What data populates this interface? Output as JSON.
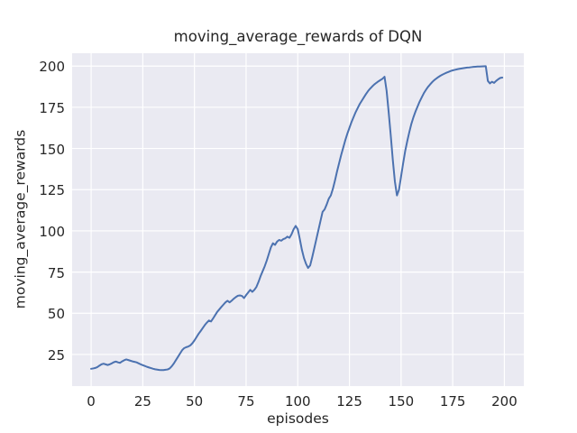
{
  "chart_data": {
    "type": "line",
    "title": "moving_average_rewards of DQN",
    "xlabel": "episodes",
    "ylabel": "moving_average_rewards",
    "legend": "none",
    "grid": true,
    "xlim": [
      -9.2,
      209.4
    ],
    "ylim": [
      5.8,
      207.8
    ],
    "xticks": [
      0,
      25,
      50,
      75,
      100,
      125,
      150,
      175,
      200
    ],
    "yticks": [
      25,
      50,
      75,
      100,
      125,
      150,
      175,
      200
    ],
    "series": [
      {
        "name": "moving_average_rewards",
        "x_start": 0,
        "x_step": 1,
        "values": [
          16.3,
          16.5,
          16.8,
          17.3,
          18.2,
          19.0,
          19.4,
          19.0,
          18.6,
          19.0,
          19.6,
          20.3,
          20.7,
          20.2,
          19.9,
          20.8,
          21.5,
          22.0,
          21.6,
          21.2,
          20.8,
          20.5,
          20.2,
          19.6,
          19.0,
          18.5,
          18.0,
          17.5,
          17.1,
          16.7,
          16.3,
          16.0,
          15.8,
          15.6,
          15.5,
          15.5,
          15.7,
          15.9,
          16.5,
          17.8,
          19.5,
          21.5,
          23.5,
          25.5,
          27.5,
          28.8,
          29.4,
          29.8,
          30.5,
          31.8,
          33.5,
          35.5,
          37.5,
          39.2,
          41.0,
          42.8,
          44.3,
          45.6,
          45.0,
          46.8,
          48.8,
          50.8,
          52.3,
          53.8,
          55.2,
          56.6,
          57.6,
          56.6,
          57.6,
          58.8,
          59.8,
          60.6,
          60.8,
          60.5,
          59.2,
          61.0,
          62.6,
          64.2,
          63.0,
          64.2,
          66.0,
          69.0,
          72.5,
          75.5,
          78.5,
          82.0,
          86.0,
          90.0,
          92.5,
          91.5,
          93.5,
          94.5,
          94.0,
          95.0,
          95.5,
          96.5,
          95.8,
          98.0,
          101.0,
          103.0,
          101.0,
          95.0,
          88.5,
          83.5,
          80.0,
          77.5,
          79.0,
          84.0,
          89.5,
          95.0,
          100.5,
          106.0,
          111.5,
          113.0,
          116.0,
          119.5,
          121.5,
          125.5,
          130.5,
          136.0,
          141.0,
          146.0,
          150.5,
          155.0,
          159.0,
          162.5,
          166.0,
          169.0,
          172.0,
          174.5,
          177.0,
          179.0,
          181.0,
          183.0,
          184.8,
          186.3,
          187.6,
          188.8,
          189.8,
          190.7,
          191.5,
          192.3,
          193.5,
          185.0,
          172.0,
          158.0,
          143.0,
          130.0,
          121.5,
          125.0,
          133.0,
          141.0,
          148.5,
          154.5,
          160.0,
          165.0,
          169.0,
          172.5,
          175.5,
          178.5,
          181.0,
          183.5,
          185.5,
          187.3,
          188.8,
          190.2,
          191.4,
          192.4,
          193.3,
          194.1,
          194.8,
          195.4,
          196.0,
          196.5,
          197.0,
          197.4,
          197.7,
          198.0,
          198.3,
          198.5,
          198.7,
          198.9,
          199.1,
          199.2,
          199.35,
          199.5,
          199.6,
          199.7,
          199.75,
          199.8,
          199.85,
          199.9,
          191.0,
          189.5,
          190.5,
          189.8,
          191.0,
          192.0,
          192.8,
          193.0
        ]
      }
    ],
    "style": {
      "fig_bg": "#ffffff",
      "axes_bg": "#eaeaf2",
      "grid_color": "#ffffff",
      "line_color": "#4c72b0",
      "line_width": 2,
      "text_color": "#262626"
    }
  }
}
